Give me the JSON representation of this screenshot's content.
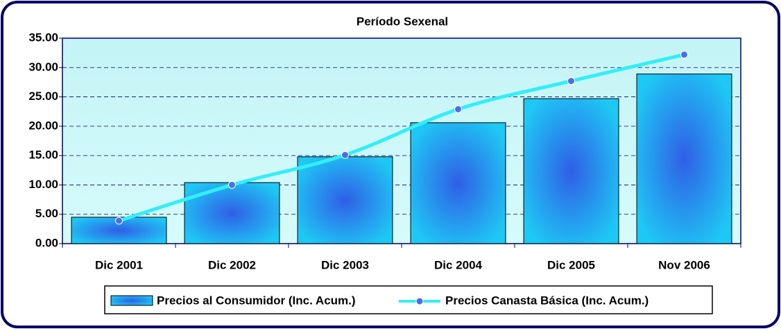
{
  "chart_data": {
    "type": "bar_line",
    "title": "Período Sexenal",
    "categories": [
      "Dic 2001",
      "Dic 2002",
      "Dic 2003",
      "Dic 2004",
      "Dic 2005",
      "Nov 2006"
    ],
    "series": [
      {
        "name": "Precios al Consumidor (Inc. Acum.)",
        "type": "bar",
        "color": "#1ec8f5",
        "values": [
          4.5,
          10.4,
          14.8,
          20.6,
          24.7,
          28.9
        ]
      },
      {
        "name": "Precios Canasta Básica (Inc. Acum.)",
        "type": "line",
        "color": "#33eef8",
        "values": [
          3.9,
          10.0,
          15.1,
          22.9,
          27.7,
          32.2
        ]
      }
    ],
    "ylim": [
      0,
      35
    ],
    "yticks": [
      {
        "value": 0,
        "label": "0.00"
      },
      {
        "value": 5,
        "label": "5.00"
      },
      {
        "value": 10,
        "label": "10.00"
      },
      {
        "value": 15,
        "label": "15.00"
      },
      {
        "value": 20,
        "label": "20.00"
      },
      {
        "value": 25,
        "label": "25.00"
      },
      {
        "value": 30,
        "label": "30.00"
      },
      {
        "value": 35,
        "label": "35.00"
      }
    ],
    "grid": true,
    "legend": "bottom"
  }
}
